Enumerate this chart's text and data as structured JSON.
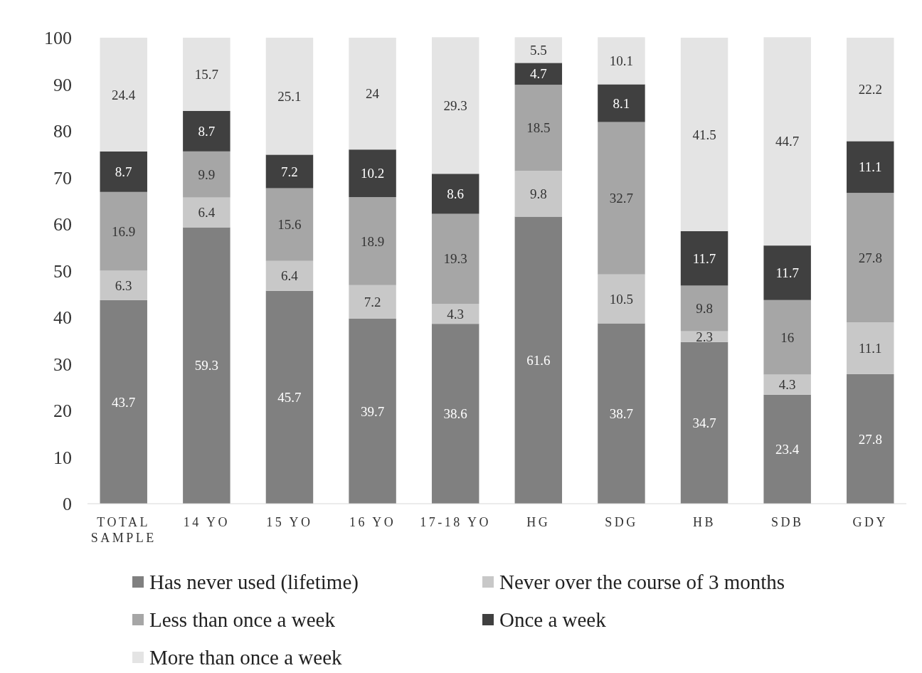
{
  "chart_data": {
    "type": "bar",
    "stacked": true,
    "categories": [
      "TOTAL SAMPLE",
      "14 YO",
      "15 YO",
      "16 YO",
      "17-18 YO",
      "HG",
      "SDG",
      "HB",
      "SDB",
      "GDY"
    ],
    "series": [
      {
        "name": "Has never used (lifetime)",
        "color": "#808080",
        "values": [
          43.7,
          59.3,
          45.7,
          39.7,
          38.6,
          61.6,
          38.7,
          34.7,
          23.4,
          27.8
        ]
      },
      {
        "name": "Never over the course of 3 months",
        "color": "#c8c8c8",
        "values": [
          6.3,
          6.4,
          6.4,
          7.2,
          4.3,
          9.8,
          10.5,
          2.3,
          4.3,
          11.1
        ]
      },
      {
        "name": "Less than once a week",
        "color": "#a6a6a6",
        "values": [
          16.9,
          9.9,
          15.6,
          18.9,
          19.3,
          18.5,
          32.7,
          9.8,
          16,
          27.8
        ]
      },
      {
        "name": "Once a week",
        "color": "#404040",
        "values": [
          8.7,
          8.7,
          7.2,
          10.2,
          8.6,
          4.7,
          8.1,
          11.7,
          11.7,
          11.1
        ]
      },
      {
        "name": "More than once a week",
        "color": "#e4e4e4",
        "values": [
          24.4,
          15.7,
          25.1,
          24,
          29.3,
          5.5,
          10.1,
          41.5,
          44.7,
          22.2
        ]
      }
    ],
    "ylim": [
      0,
      100
    ],
    "yticks": [
      0,
      10,
      20,
      30,
      40,
      50,
      60,
      70,
      80,
      90,
      100
    ],
    "data_labels": true,
    "legend": "bottom",
    "grid": false
  }
}
